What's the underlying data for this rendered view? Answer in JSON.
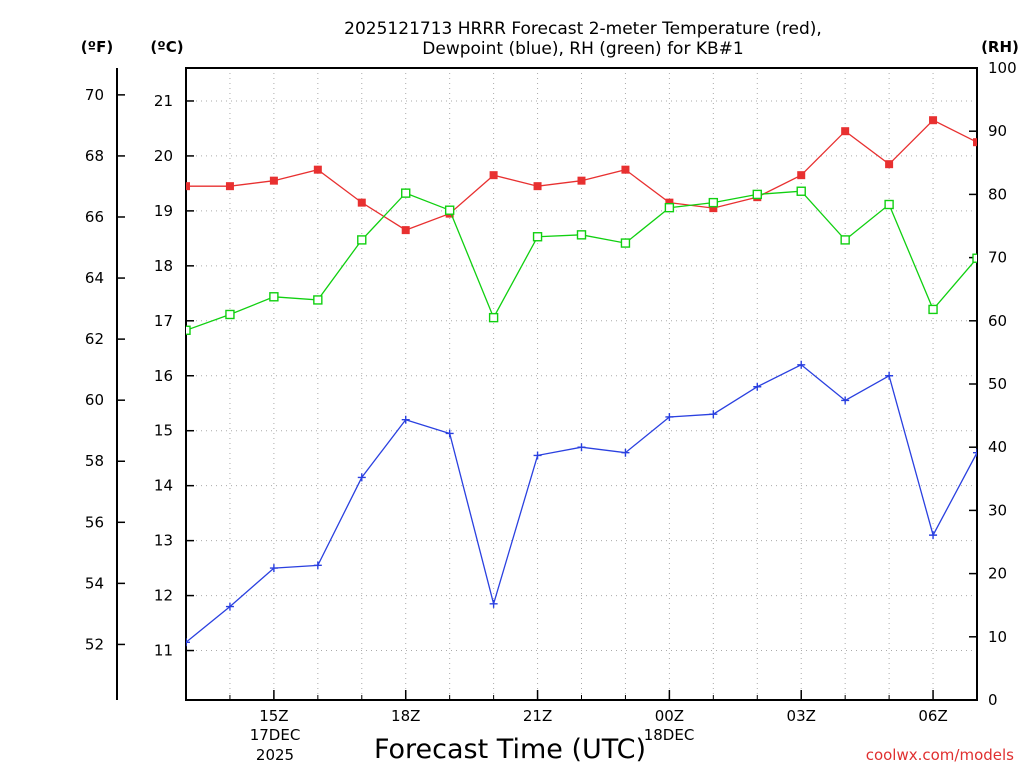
{
  "chart_data": {
    "type": "line",
    "title_line1": "2025121713 HRRR Forecast 2-meter Temperature (red),",
    "title_line2": "Dewpoint (blue), RH (green) for KB#1",
    "xlabel": "Forecast Time (UTC)",
    "credit": "coolwx.com/models",
    "unit_f": "(ºF)",
    "unit_c": "(ºC)",
    "unit_rh": "(RH)",
    "date_start": "17DEC",
    "year_start": "2025",
    "date_next": "18DEC",
    "x_hours": [
      13,
      14,
      15,
      16,
      17,
      18,
      19,
      20,
      21,
      22,
      23,
      24,
      25,
      26,
      27,
      28,
      29,
      30,
      31
    ],
    "x_ticks": [
      {
        "hour": 15,
        "label": "15Z"
      },
      {
        "hour": 18,
        "label": "18Z"
      },
      {
        "hour": 21,
        "label": "21Z"
      },
      {
        "hour": 24,
        "label": "00Z"
      },
      {
        "hour": 27,
        "label": "03Z"
      },
      {
        "hour": 30,
        "label": "06Z"
      }
    ],
    "xlim": [
      13,
      31
    ],
    "ylim_c": [
      10.1,
      21.6
    ],
    "ylim_rh": [
      0,
      100
    ],
    "yticks_c": [
      11,
      12,
      13,
      14,
      15,
      16,
      17,
      18,
      19,
      20,
      21
    ],
    "yticks_f": [
      52,
      54,
      56,
      58,
      60,
      62,
      64,
      66,
      68,
      70
    ],
    "yticks_rh": [
      0,
      10,
      20,
      30,
      40,
      50,
      60,
      70,
      80,
      90,
      100
    ],
    "series": [
      {
        "name": "Temperature",
        "color": "#e83030",
        "marker": "filled-square",
        "units": "C",
        "values": [
          19.45,
          19.45,
          19.55,
          19.75,
          19.15,
          18.65,
          18.95,
          19.65,
          19.45,
          19.55,
          19.75,
          19.15,
          19.05,
          19.25,
          19.65,
          20.45,
          19.85,
          20.65,
          20.25
        ]
      },
      {
        "name": "Dewpoint",
        "color": "#2a40e0",
        "marker": "plus",
        "units": "C",
        "values": [
          11.15,
          11.8,
          12.5,
          12.55,
          14.15,
          15.2,
          14.95,
          11.85,
          14.55,
          14.7,
          14.6,
          15.25,
          15.3,
          15.8,
          16.2,
          15.55,
          16.0,
          13.1,
          14.6
        ]
      },
      {
        "name": "RH",
        "color": "#10d010",
        "marker": "open-square",
        "units": "%",
        "values": [
          58.5,
          61.0,
          63.8,
          63.3,
          72.8,
          80.2,
          77.5,
          60.5,
          73.3,
          73.6,
          72.3,
          77.9,
          78.7,
          80.0,
          80.5,
          72.8,
          78.4,
          61.8,
          69.9
        ]
      }
    ]
  }
}
